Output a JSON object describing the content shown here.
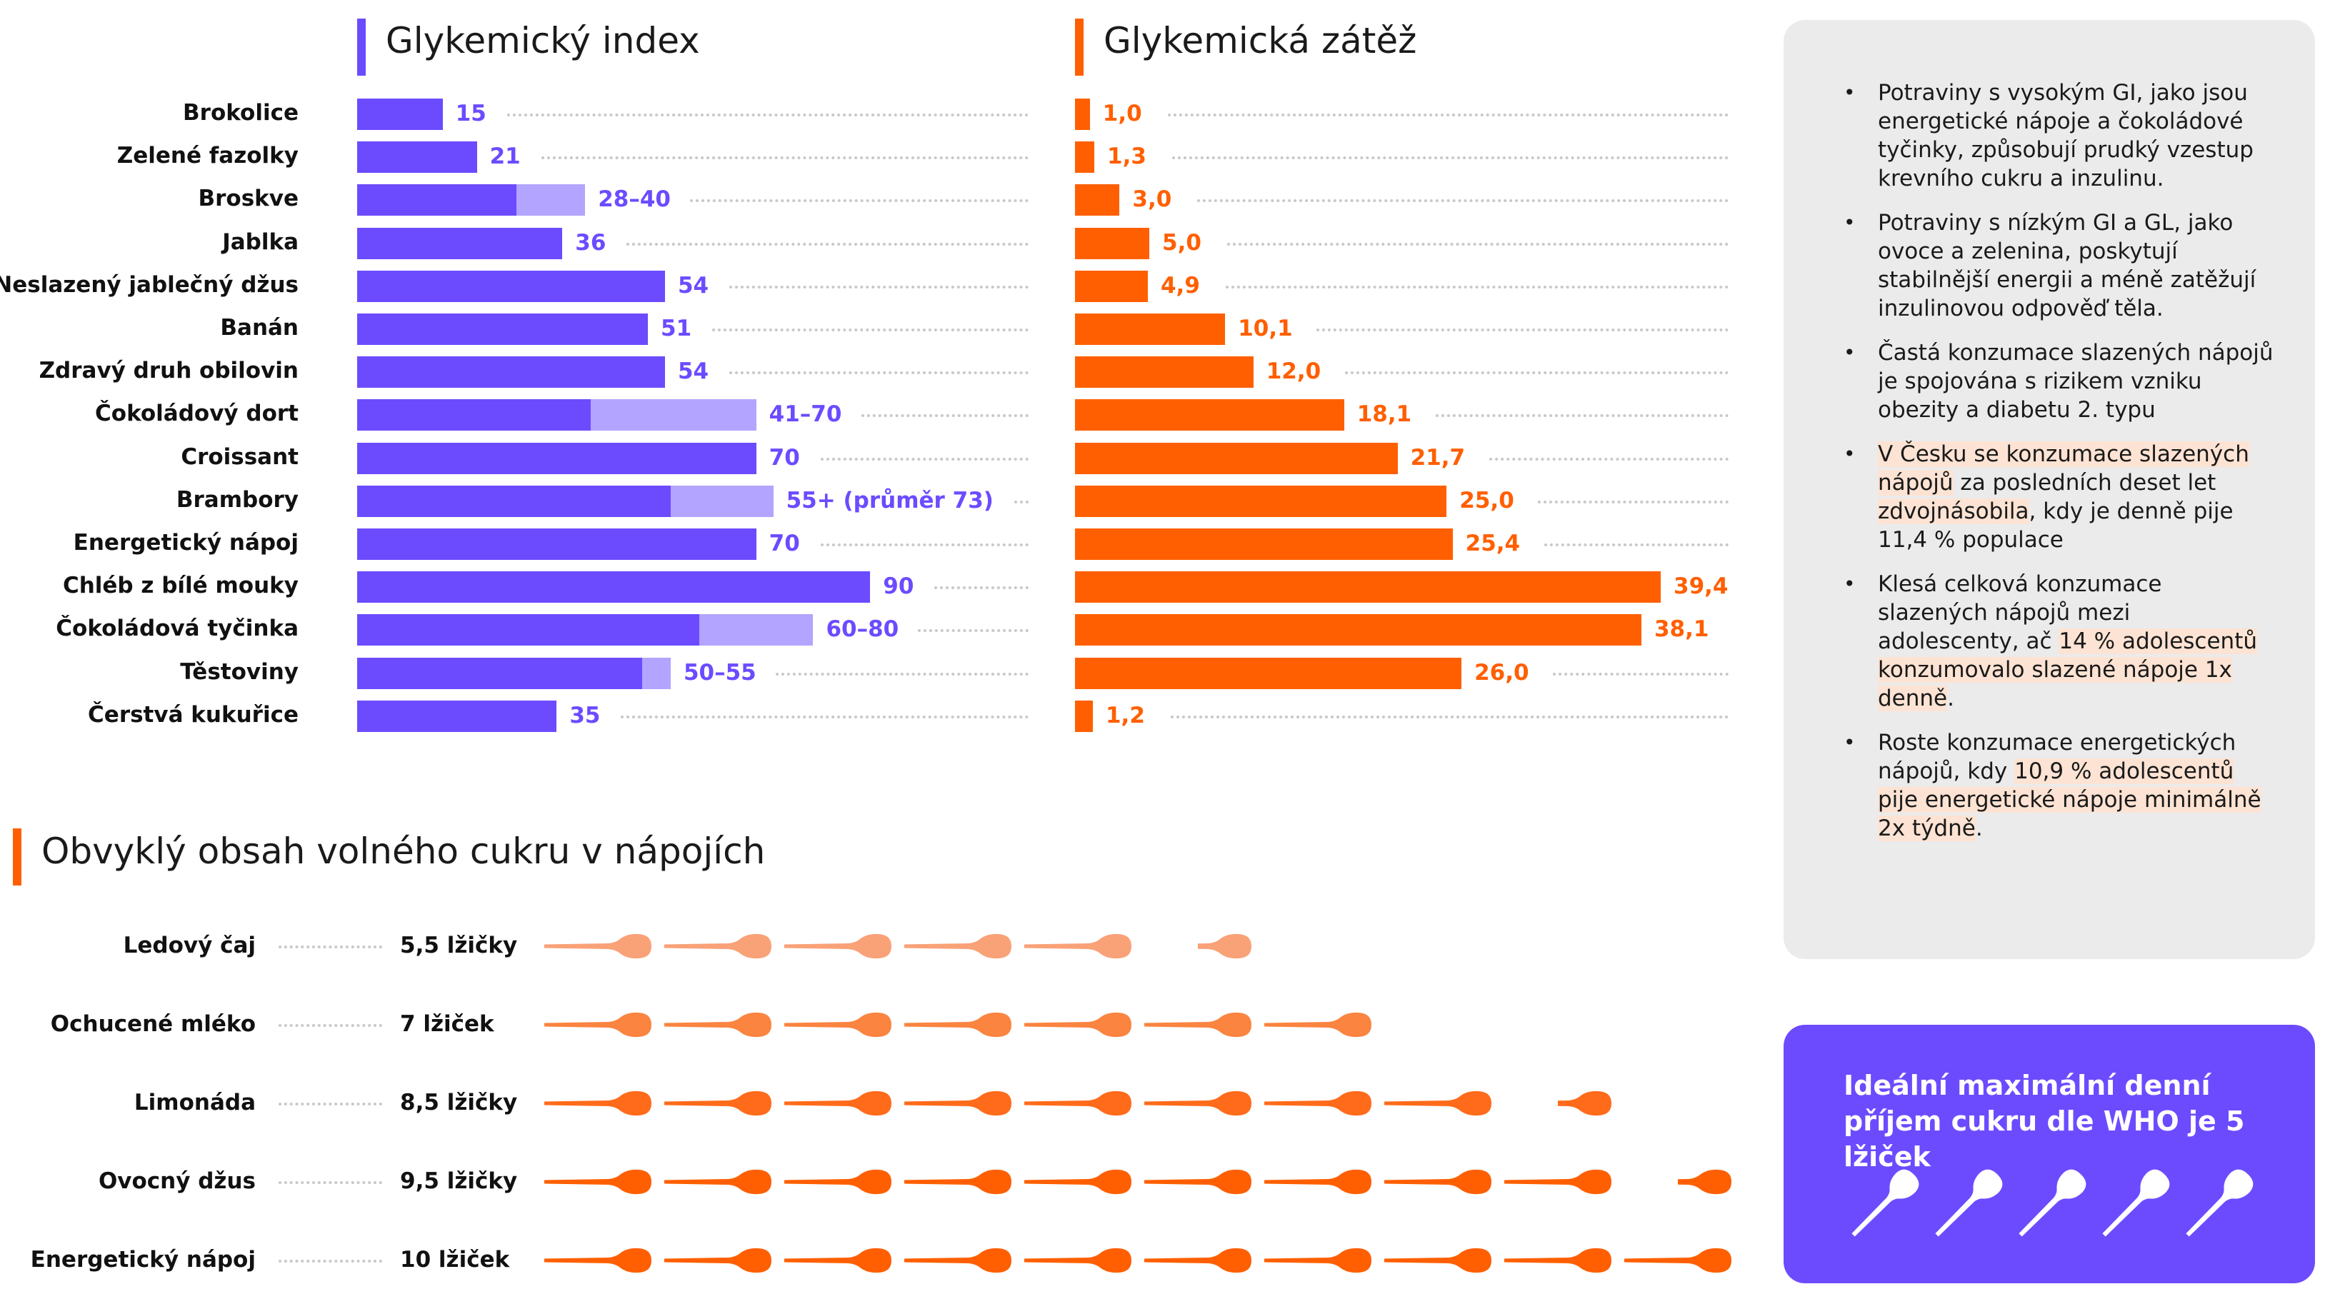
{
  "chart_data": [
    {
      "type": "bar",
      "orientation": "horizontal",
      "title": "Glykemický index",
      "color": "#6c4bff",
      "range_color": "#b3a4ff",
      "categories": [
        "Brokolice",
        "Zelené fazolky",
        "Broskve",
        "Jablka",
        "Neslazený jablečný džus",
        "Banán",
        "Zdravý druh obilovin",
        "Čokoládový dort",
        "Croissant",
        "Brambory",
        "Energetický nápoj",
        "Chléb z bílé mouky",
        "Čokoládová tyčinka",
        "Těstoviny",
        "Čerstvá kukuřice"
      ],
      "values": [
        15,
        21,
        28,
        36,
        54,
        51,
        54,
        41,
        70,
        55,
        70,
        90,
        60,
        50,
        35
      ],
      "value_max": [
        15,
        21,
        40,
        36,
        54,
        51,
        54,
        70,
        70,
        73,
        70,
        90,
        80,
        55,
        35
      ],
      "labels": [
        "15",
        "21",
        "28–40",
        "36",
        "54",
        "51",
        "54",
        "41–70",
        "70",
        "55+ (průměr 73)",
        "70",
        "90",
        "60–80",
        "50–55",
        "35"
      ],
      "xlim": [
        0,
        104
      ]
    },
    {
      "type": "bar",
      "orientation": "horizontal",
      "title": "Glykemická zátěž",
      "color": "#ff5f00",
      "categories": [
        "Brokolice",
        "Zelené fazolky",
        "Broskve",
        "Jablka",
        "Neslazený jablečný džus",
        "Banán",
        "Zdravý druh obilovin",
        "Čokoládový dort",
        "Croissant",
        "Brambory",
        "Energetický nápoj",
        "Chléb z bílé mouky",
        "Čokoládová tyčinka",
        "Těstoviny",
        "Čerstvá kukuřice"
      ],
      "values": [
        1.0,
        1.3,
        3.0,
        5.0,
        4.9,
        10.1,
        12.0,
        18.1,
        21.7,
        25.0,
        25.4,
        39.4,
        38.1,
        26.0,
        1.2
      ],
      "labels": [
        "1,0",
        "1,3",
        "3,0",
        "5,0",
        "4,9",
        "10,1",
        "12,0",
        "18,1",
        "21,7",
        "25,0",
        "25,4",
        "39,4",
        "38,1",
        "26,0",
        "1,2"
      ],
      "xlim": [
        0,
        39.4
      ]
    },
    {
      "type": "pictograph",
      "title": "Obvyklý obsah volného cukru v nápojích",
      "icon": "spoon-icon",
      "categories": [
        "Ledový čaj",
        "Ochucené mléko",
        "Limonáda",
        "Ovocný džus",
        "Energetický nápoj"
      ],
      "values": [
        5.5,
        7,
        8.5,
        9.5,
        10
      ],
      "labels": [
        "5,5 lžičky",
        "7 lžiček",
        "8,5 lžičky",
        "9,5 lžičky",
        "10 lžiček"
      ],
      "colors": [
        "#f9a177",
        "#fb8440",
        "#ff6b1a",
        "#ff5f00",
        "#ff5f00"
      ]
    }
  ],
  "panel": {
    "items": [
      {
        "parts": [
          {
            "t": "Potraviny s vysokým GI, jako jsou energetické nápoje a čokoládové tyčinky, způsobují prudký vzestup krevního cukru a inzulinu."
          }
        ]
      },
      {
        "parts": [
          {
            "t": "Potraviny s nízkým GI a GL, jako ovoce a zelenina, poskytují stabilnější energii a méně zatěžují inzulinovou odpověď těla."
          }
        ]
      },
      {
        "parts": [
          {
            "t": "Častá konzumace slazených nápojů je spojována s rizikem vzniku obezity a diabetu 2. typu"
          }
        ]
      },
      {
        "parts": [
          {
            "t": "V Česku se konzumace slazených nápojů",
            "hl": true
          },
          {
            "t": " za posledních deset let "
          },
          {
            "t": "zdvojnásobila",
            "hl": true
          },
          {
            "t": ", kdy je denně pije 11,4 % populace"
          }
        ]
      },
      {
        "parts": [
          {
            "t": "Klesá celková konzumace slazených nápojů mezi adolescenty, ač "
          },
          {
            "t": "14 % adolescentů konzumovalo slazené nápoje 1x denně",
            "hl": true
          },
          {
            "t": "."
          }
        ]
      },
      {
        "parts": [
          {
            "t": "Roste konzumace energetických nápojů, kdy "
          },
          {
            "t": "10,9 % adolescentů pije energetické nápoje minimálně 2x týdně",
            "hl": true
          },
          {
            "t": "."
          }
        ]
      }
    ]
  },
  "who": {
    "text": "Ideální maximální denní příjem cukru dle WHO je 5 lžiček",
    "spoons": 5,
    "icon": "spoon-icon"
  }
}
